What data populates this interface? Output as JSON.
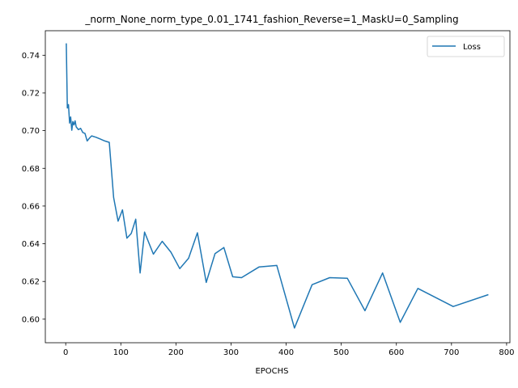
{
  "chart_data": {
    "type": "line",
    "title": "_norm_None_norm_type_0.01_1741_fashion_Reverse=1_MaskU=0_Sampling",
    "xlabel": "EPOCHS",
    "ylabel": "",
    "xlim": [
      -37,
      806
    ],
    "ylim": [
      0.5875,
      0.753
    ],
    "xticks": [
      0,
      100,
      200,
      300,
      400,
      500,
      600,
      700,
      800
    ],
    "yticks": [
      0.6,
      0.62,
      0.64,
      0.66,
      0.68,
      0.7,
      0.72,
      0.74
    ],
    "legend": {
      "position": "top-right"
    },
    "grid": false,
    "color": "#1f77b4",
    "series": [
      {
        "name": "Loss",
        "x": [
          1,
          3,
          5,
          7,
          9,
          11,
          13,
          15,
          17,
          19,
          23,
          27,
          31,
          35,
          39,
          43,
          47,
          55,
          63,
          71,
          79,
          87,
          95,
          103,
          111,
          119,
          127,
          135,
          143,
          159,
          175,
          191,
          207,
          223,
          239,
          255,
          271,
          287,
          303,
          319,
          351,
          383,
          415,
          447,
          479,
          511,
          543,
          575,
          607,
          639,
          703,
          767
        ],
        "y": [
          0.7463,
          0.712,
          0.7138,
          0.704,
          0.7072,
          0.7002,
          0.7048,
          0.703,
          0.7052,
          0.702,
          0.7005,
          0.7012,
          0.699,
          0.6985,
          0.6945,
          0.696,
          0.6972,
          0.6965,
          0.6955,
          0.6945,
          0.6938,
          0.6645,
          0.652,
          0.658,
          0.643,
          0.6455,
          0.653,
          0.6245,
          0.6462,
          0.6345,
          0.6413,
          0.6355,
          0.6268,
          0.6323,
          0.6458,
          0.6195,
          0.6348,
          0.638,
          0.6225,
          0.622,
          0.6277,
          0.6285,
          0.5953,
          0.6183,
          0.622,
          0.6217,
          0.6045,
          0.6245,
          0.5983,
          0.6163,
          0.6067,
          0.613
        ]
      }
    ]
  }
}
